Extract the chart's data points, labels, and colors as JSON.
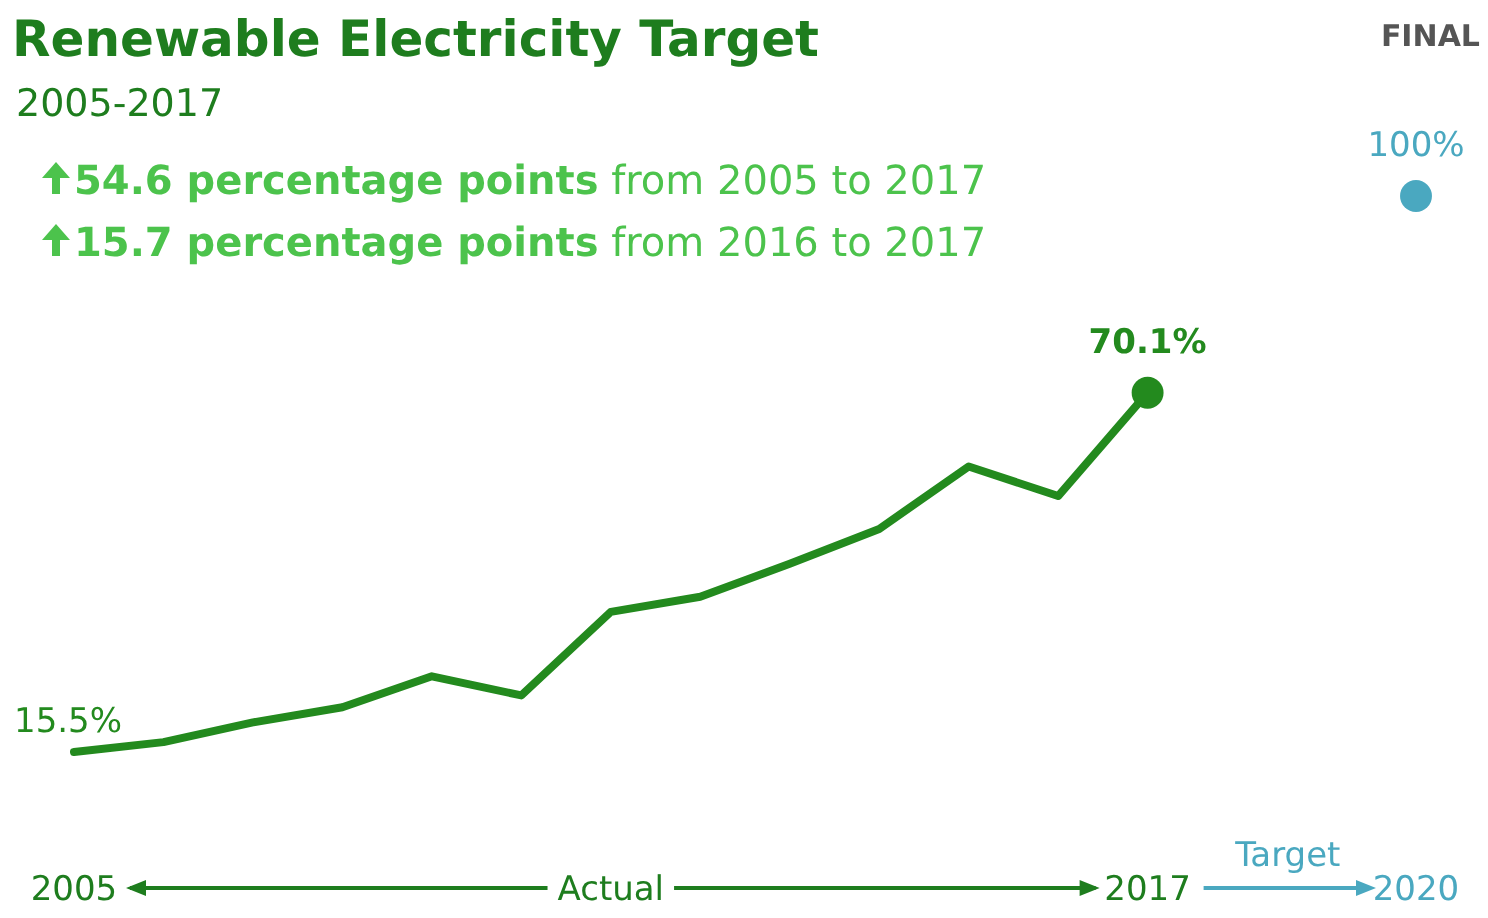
{
  "chart_data": {
    "type": "line",
    "title": "Renewable Electricity Target",
    "subtitle": "2005-2017",
    "annotations": [
      "54.6 percentage points from 2005 to 2017",
      "15.7 percentage points from 2016 to 2017",
      "FINAL",
      "Actual",
      "Target"
    ],
    "xlim": [
      2005,
      2020
    ],
    "xticks": [
      2005,
      2017,
      2020
    ],
    "tick_labels": "x",
    "marker": "none",
    "line_style": "solid",
    "series": [
      {
        "color": "#238a1e",
        "x": [
          2005,
          2006,
          2007,
          2008,
          2009,
          2010,
          2011,
          2012,
          2013,
          2014,
          2015,
          2016,
          2017
        ],
        "values": [
          15.5,
          17.0,
          20.0,
          22.3,
          27.0,
          24.1,
          36.8,
          39.1,
          44.1,
          49.4,
          58.9,
          54.4,
          70.1
        ],
        "value_labels": [
          "15.5%",
          null,
          null,
          null,
          null,
          null,
          null,
          null,
          null,
          null,
          null,
          null,
          null
        ]
      },
      {
        "type": "scatter",
        "marker": "circle",
        "color": "#238a1e",
        "x": [
          2017
        ],
        "values": [
          70.1
        ],
        "value_labels": [
          "70.1%"
        ]
      },
      {
        "type": "scatter",
        "marker": "circle",
        "color": "#4aa8c0",
        "x": [
          2020
        ],
        "values": [
          100
        ],
        "value_labels": [
          "100%"
        ]
      }
    ]
  }
}
